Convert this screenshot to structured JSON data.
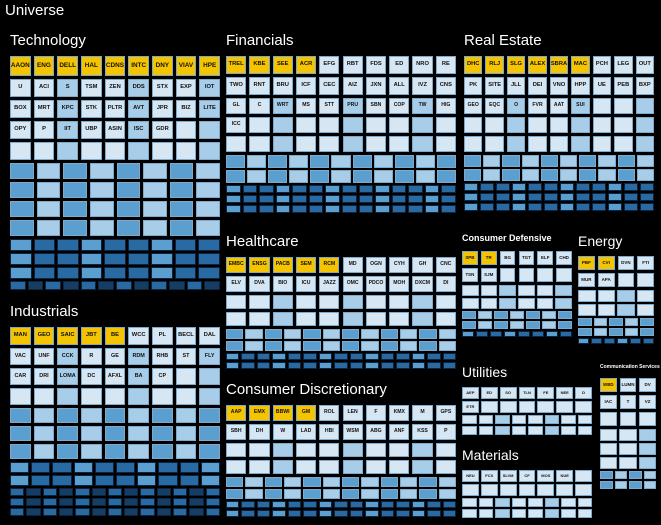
{
  "chart_data": {
    "type": "treemap",
    "title": "Universe",
    "colors": {
      "background": "#000000",
      "yellow": "#f5c400",
      "pale": "#d6e6f3",
      "light": "#a8cde8",
      "mid": "#5a9fd0",
      "dark": "#2a6aa2",
      "darkest": "#163d63"
    },
    "sectors": [
      {
        "name": "Technology",
        "tickers": [
          "AAON",
          "ENG",
          "DELL",
          "HAL",
          "CDNS",
          "INTC",
          "DNY",
          "VIAV",
          "HPE",
          "U",
          "ACI",
          "S",
          "TSM",
          "ZEN",
          "DDS",
          "STX",
          "EXP",
          "IOT",
          "BOX",
          "MRT",
          "KPC",
          "STK",
          "PLTR",
          "AVT",
          "JPR",
          "BIZ",
          "LITE",
          "OPY",
          "P",
          "IIT",
          "UBP",
          "ASIN",
          "ISC",
          "GDR"
        ],
        "yellow": 9
      },
      {
        "name": "Financials",
        "tickers": [
          "TREL",
          "KBE",
          "SEE",
          "ACR",
          "EFG",
          "RBT",
          "FDS",
          "ED",
          "NRO",
          "RE",
          "TWO",
          "RNT",
          "BRU",
          "ICF",
          "CEC",
          "AIZ",
          "JXN",
          "ALL",
          "IVZ",
          "CNS",
          "GL",
          "C",
          "WRT",
          "MS",
          "STT",
          "PRU",
          "SBN",
          "COP",
          "TW",
          "HIG",
          "ICC"
        ],
        "yellow": 4
      },
      {
        "name": "Real Estate",
        "tickers": [
          "DHC",
          "RLJ",
          "SLG",
          "ALEX",
          "SBRA",
          "MAC",
          "PCH",
          "LEG",
          "OUT",
          "PK",
          "SITE",
          "JLL",
          "DEI",
          "VNO",
          "HPP",
          "UE",
          "PEB",
          "BXP",
          "GEO",
          "EQC",
          "O",
          "FVR",
          "AAT",
          "SUI"
        ],
        "yellow": 6
      },
      {
        "name": "Healthcare",
        "tickers": [
          "EMBC",
          "ENSG",
          "PACB",
          "SEM",
          "RCM",
          "MD",
          "OGN",
          "CYH",
          "GH",
          "CNC",
          "ELV",
          "DVA",
          "BIO",
          "ICU",
          "JAZZ",
          "OMC",
          "PDCO",
          "MOH",
          "DXCM",
          "DI"
        ],
        "yellow": 5
      },
      {
        "name": "Consumer Discretionary",
        "tickers": [
          "AAP",
          "EMX",
          "BBWI",
          "GM",
          "ROL",
          "LEN",
          "F",
          "KMX",
          "M",
          "GPS",
          "SBH",
          "DH",
          "W",
          "LAD",
          "HBI",
          "WSM",
          "ABG",
          "ANF",
          "KSS",
          "P"
        ],
        "yellow": 4
      },
      {
        "name": "Industrials",
        "tickers": [
          "MAN",
          "GEO",
          "SAIC",
          "JBT",
          "BE",
          "WCC",
          "PL",
          "BECL",
          "DAL",
          "VAC",
          "UNF",
          "CCK",
          "R",
          "GE",
          "RDM",
          "RHB",
          "ST",
          "FLY",
          "CAR",
          "DRI",
          "LOMA",
          "DC",
          "AFXL",
          "BA",
          "CP"
        ],
        "yellow": 5
      },
      {
        "name": "Consumer Defensive",
        "tickers": [
          "SPB",
          "TR",
          "BG",
          "TGT",
          "ELF",
          "CHD",
          "TSN",
          "SJM"
        ],
        "yellow": 2
      },
      {
        "name": "Energy",
        "tickers": [
          "PBF",
          "CVI",
          "DVN",
          "FTI",
          "MUR",
          "APA"
        ],
        "yellow": 2
      },
      {
        "name": "Utilities",
        "tickers": [
          "AEP",
          "ED",
          "SO",
          "TLN",
          "FE",
          "NEE",
          "D",
          "ETR"
        ],
        "yellow": 0
      },
      {
        "name": "Communication Services",
        "tickers": [
          "WBD",
          "LUMN",
          "DV",
          "IAC",
          "T",
          "VZ"
        ],
        "yellow": 1
      },
      {
        "name": "Materials",
        "tickers": [
          "NEU",
          "FCX",
          "SLVM",
          "CF",
          "MOS",
          "NUE"
        ],
        "yellow": 0
      }
    ]
  }
}
